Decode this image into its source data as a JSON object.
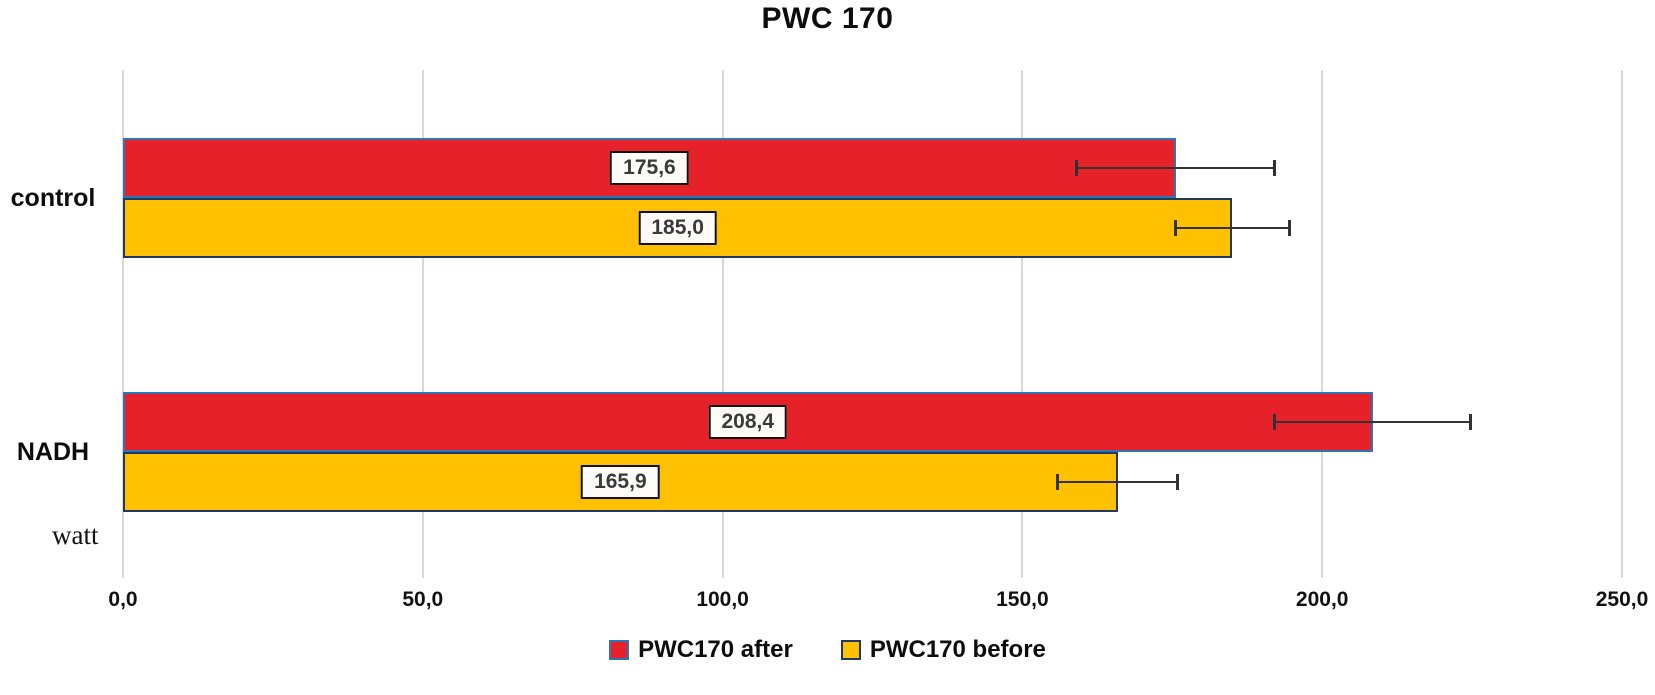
{
  "chart_data": {
    "type": "bar",
    "orientation": "horizontal",
    "title": "PWC 170",
    "categories": [
      "control",
      "NADH"
    ],
    "series": [
      {
        "name": "PWC170 after",
        "color": "#e62129",
        "border_color": "#2e75b6",
        "values": [
          175.6,
          208.4
        ],
        "value_labels": [
          "175,6",
          "208,4"
        ],
        "error_bars": [
          16.5,
          16.3
        ]
      },
      {
        "name": "PWC170 before",
        "color": "#ffc000",
        "border_color": "#1f3864",
        "values": [
          185.0,
          165.9
        ],
        "value_labels": [
          "185,0",
          "165,9"
        ],
        "error_bars": [
          9.5,
          10.0
        ]
      }
    ],
    "xlabel": "watt",
    "xlim": [
      0,
      250
    ],
    "x_ticks": [
      0,
      50,
      100,
      150,
      200,
      250
    ],
    "x_tick_labels": [
      "0,0",
      "50,0",
      "100,0",
      "150,0",
      "200,0",
      "250,0"
    ],
    "grid": "vertical",
    "gridline_color": "#d8d8d8",
    "error_bar_color": "#333333",
    "legend_position": "bottom"
  }
}
